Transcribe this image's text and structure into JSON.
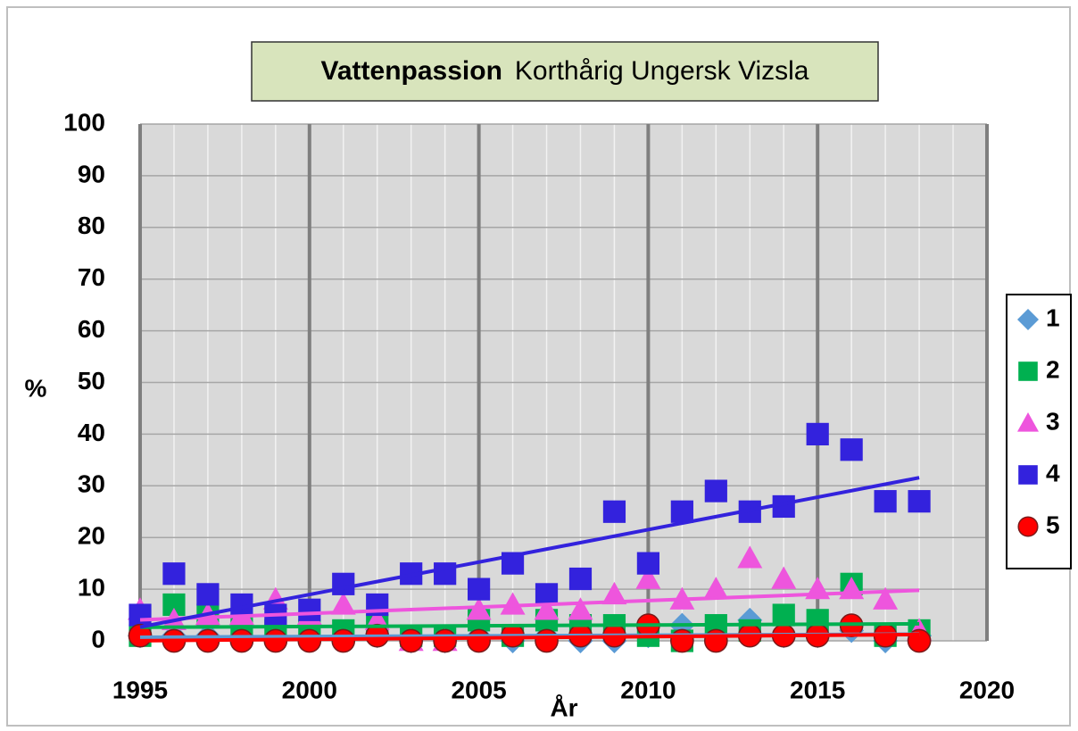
{
  "chart_data": {
    "type": "scatter",
    "title": "Vattenpassion",
    "subtitle": "Korthårig Ungersk Vizsla",
    "xlabel": "År",
    "ylabel": "%",
    "x": [
      1995,
      1996,
      1997,
      1998,
      1999,
      2000,
      2001,
      2002,
      2003,
      2004,
      2005,
      2006,
      2007,
      2008,
      2009,
      2010,
      2011,
      2012,
      2013,
      2014,
      2015,
      2016,
      2017,
      2018
    ],
    "series": [
      {
        "name": "1",
        "color": "#5b9bd5",
        "marker": "diamond",
        "values": [
          1,
          1,
          1,
          1,
          1,
          1,
          1,
          1,
          0,
          0,
          1,
          0,
          1,
          0,
          0,
          1,
          3,
          1,
          4,
          1,
          1,
          2,
          0,
          1
        ]
      },
      {
        "name": "2",
        "color": "#00b050",
        "marker": "square",
        "values": [
          1,
          7,
          5,
          3,
          2,
          2,
          2,
          3,
          1,
          1,
          4,
          1,
          4,
          3,
          3,
          1,
          0,
          3,
          2,
          5,
          4,
          11,
          1,
          2
        ]
      },
      {
        "name": "3",
        "color": "#ee55dd",
        "marker": "triangle",
        "values": [
          6,
          4,
          5,
          5,
          8,
          5,
          7,
          4,
          0,
          0,
          6,
          7,
          6,
          6,
          9,
          12,
          8,
          10,
          16,
          12,
          10,
          10,
          8,
          2
        ]
      },
      {
        "name": "4",
        "color": "#3322dd",
        "marker": "square",
        "values": [
          5,
          13,
          9,
          7,
          5,
          6,
          11,
          7,
          13,
          13,
          10,
          15,
          9,
          12,
          25,
          15,
          25,
          29,
          25,
          26,
          40,
          37,
          27,
          27
        ]
      },
      {
        "name": "5",
        "color": "#ff0000",
        "marker": "circle",
        "values": [
          1,
          0,
          0,
          0,
          0,
          0,
          0,
          1,
          0,
          0,
          0,
          1,
          0,
          1,
          1,
          3,
          0,
          0,
          1,
          1,
          1,
          3,
          1,
          0
        ]
      }
    ],
    "xlim": [
      1995,
      2020
    ],
    "xticks": [
      1995,
      2000,
      2005,
      2010,
      2015,
      2020
    ],
    "ylim": [
      0,
      100
    ],
    "yticks": [
      0,
      10,
      20,
      30,
      40,
      50,
      60,
      70,
      80,
      90,
      100
    ],
    "grid": true,
    "trendline": true,
    "legend": "right"
  }
}
